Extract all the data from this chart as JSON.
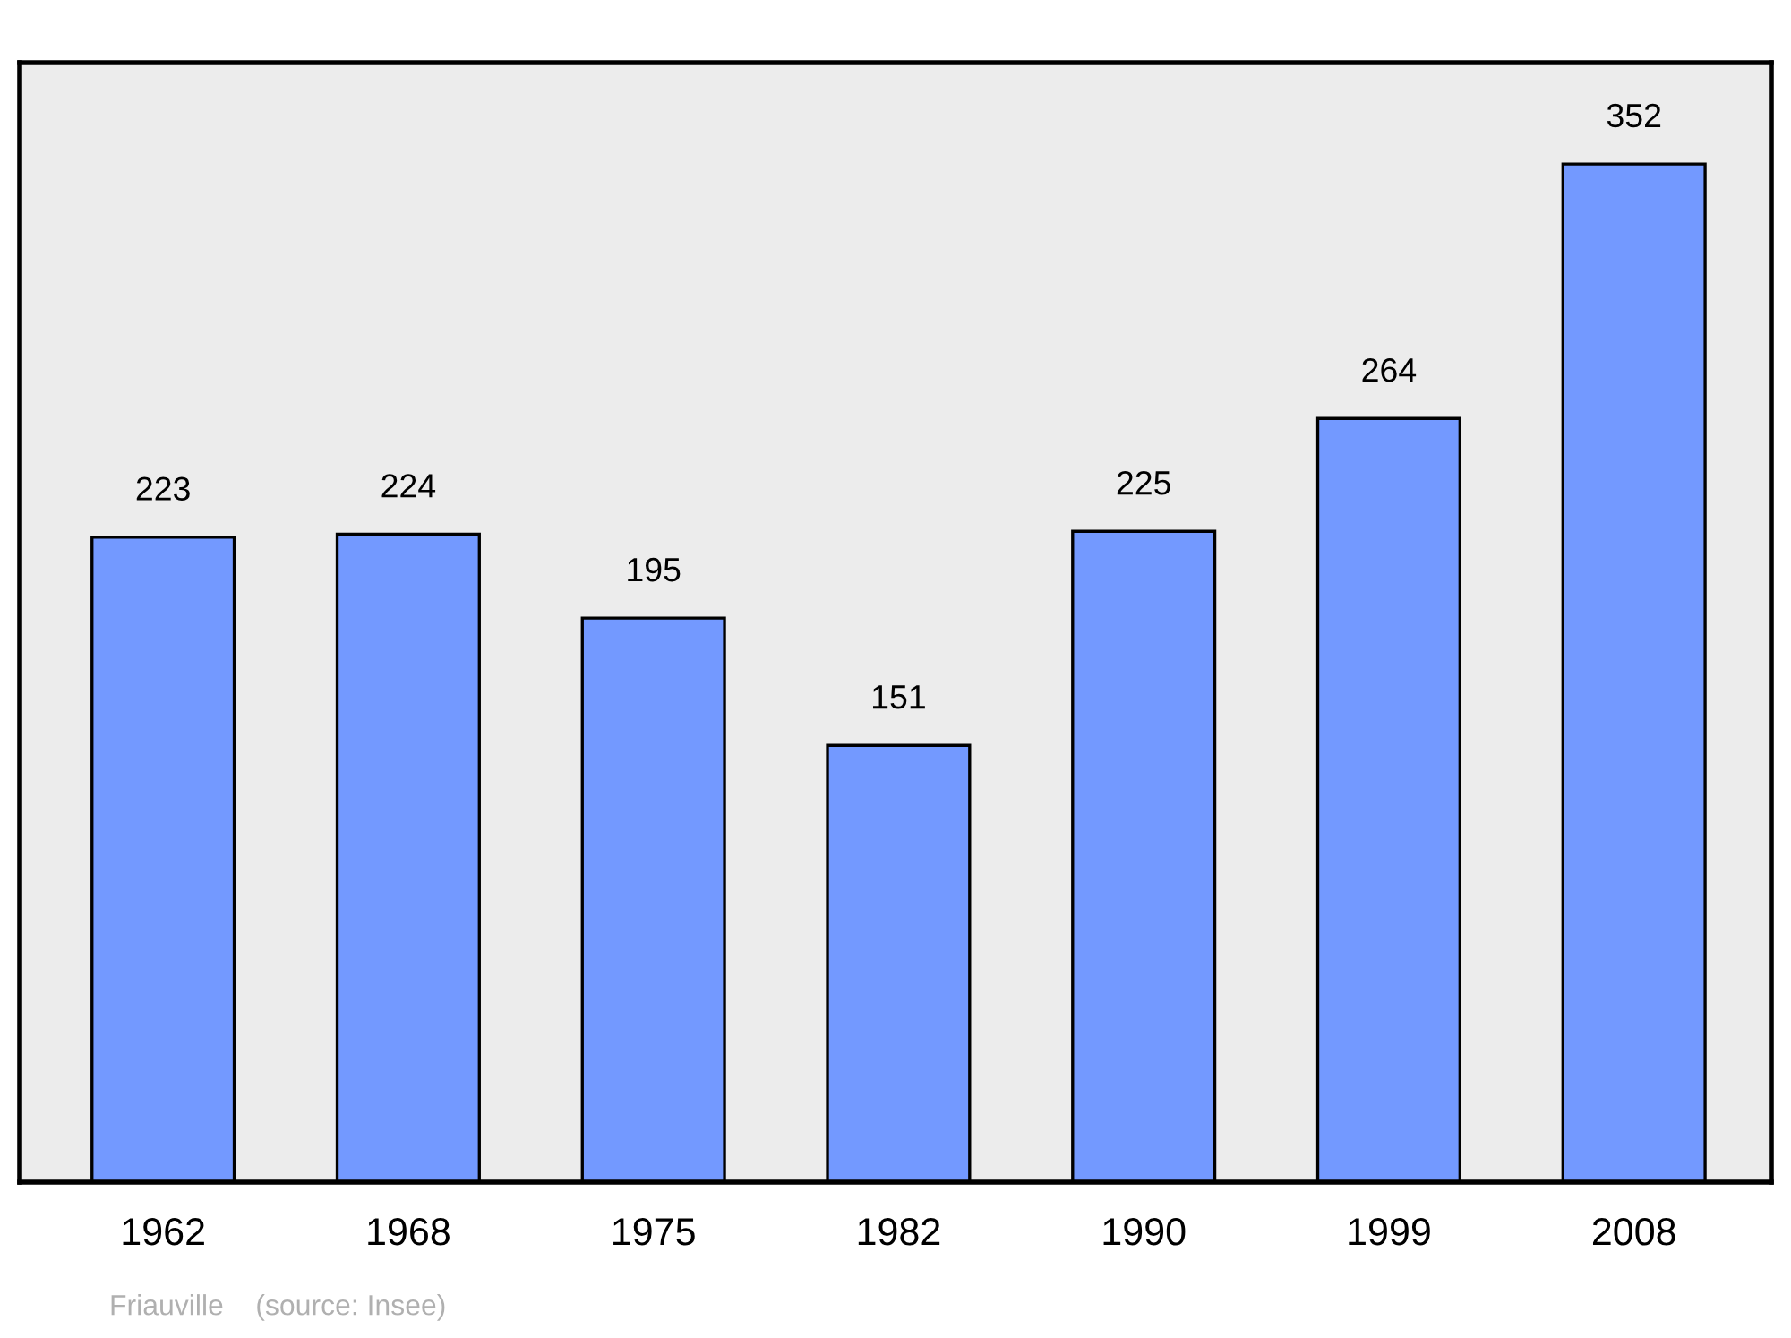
{
  "chart_data": {
    "type": "bar",
    "categories": [
      "1962",
      "1968",
      "1975",
      "1982",
      "1990",
      "1999",
      "2008"
    ],
    "values": [
      223,
      224,
      195,
      151,
      225,
      264,
      352
    ],
    "color": "#7399ff",
    "ylim": [
      0,
      387
    ],
    "data_labels": true,
    "grid": false,
    "legend": false,
    "tick_labels": "x",
    "annotations": [
      "Friauville    (source: Insee)"
    ]
  }
}
